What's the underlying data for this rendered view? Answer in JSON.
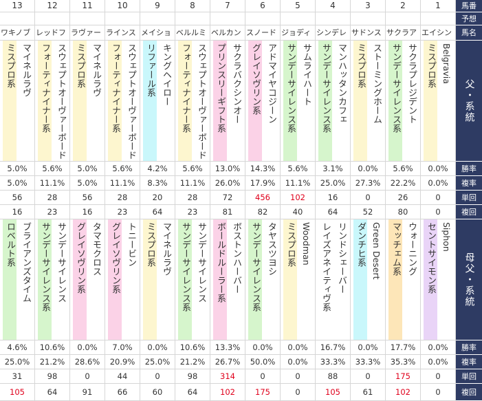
{
  "header_labels": {
    "horse_no": "馬番",
    "prediction": "予想",
    "horse_name": "馬名",
    "sire_line": "父・系統",
    "win_rate": "勝率",
    "place_rate": "複率",
    "win_return": "単回",
    "place_return": "複回",
    "dam_sire_line": "母父・系統"
  },
  "colors": {
    "header_bg": "#2e3b63",
    "highlight_text": "#e0001b",
    "lines": {
      "ミスプロ系": "#fdf6cf",
      "フォーティナイナー系": "#fdf6cf",
      "リファール系": "#c9f7fb",
      "プリンスリーギフト系": "#fbd2e7",
      "グレイソヴリン系": "#fbd2e7",
      "ボールドルーラー系": "#fbd2e7",
      "サンデーサイレンス系": "#d6f5cc",
      "ロベルト系": "#d6f5cc",
      "ダンチヒ系": "#c9f7fb",
      "マッチェム系": "#fde6b8",
      "セントサイモン系": "#e9d4f7"
    }
  },
  "horses": [
    {
      "no": "13",
      "name": "ワキノブ",
      "sire": "マイネルラヴ",
      "sire_line": "ミスプロ系",
      "sire_stats": {
        "win": "5.0%",
        "place": "5.0%",
        "win_ret": "56",
        "place_ret": "16"
      },
      "dam_sire": "ブライアンズタイム",
      "dam_sire_line": "ロベルト系",
      "dam_stats": {
        "win": "4.6%",
        "place": "25.0%",
        "win_ret": "31",
        "place_ret": "105"
      }
    },
    {
      "no": "12",
      "name": "レッドフ",
      "sire": "スウェプトオーヴァーボード",
      "sire_line": "フォーティナイナー系",
      "sire_stats": {
        "win": "5.6%",
        "place": "11.1%",
        "win_ret": "28",
        "place_ret": "23"
      },
      "dam_sire": "サンデーサイレンス",
      "dam_sire_line": "サンデーサイレンス系",
      "dam_stats": {
        "win": "10.6%",
        "place": "21.2%",
        "win_ret": "98",
        "place_ret": "64"
      }
    },
    {
      "no": "11",
      "name": "ラヴァー",
      "sire": "マイネルラヴ",
      "sire_line": "ミスプロ系",
      "sire_stats": {
        "win": "5.0%",
        "place": "5.0%",
        "win_ret": "56",
        "place_ret": "16"
      },
      "dam_sire": "タマモクロス",
      "dam_sire_line": "グレイソヴリン系",
      "dam_stats": {
        "win": "0.0%",
        "place": "28.6%",
        "win_ret": "0",
        "place_ret": "91"
      }
    },
    {
      "no": "10",
      "name": "ラインス",
      "sire": "スウェプトオーヴァーボード",
      "sire_line": "フォーティナイナー系",
      "sire_stats": {
        "win": "5.6%",
        "place": "11.1%",
        "win_ret": "28",
        "place_ret": "23"
      },
      "dam_sire": "トニービン",
      "dam_sire_line": "グレイソヴリン系",
      "dam_stats": {
        "win": "7.0%",
        "place": "20.9%",
        "win_ret": "44",
        "place_ret": "66"
      }
    },
    {
      "no": "9",
      "name": "メイショ",
      "sire": "キングヘイロー",
      "sire_line": "リファール系",
      "sire_stats": {
        "win": "4.2%",
        "place": "8.3%",
        "win_ret": "20",
        "place_ret": "64"
      },
      "dam_sire": "マイネルラヴ",
      "dam_sire_line": "ミスプロ系",
      "dam_stats": {
        "win": "0.0%",
        "place": "25.0%",
        "win_ret": "0",
        "place_ret": "60"
      }
    },
    {
      "no": "8",
      "name": "ベルルミ",
      "sire": "スウェプトオーヴァーボード",
      "sire_line": "フォーティナイナー系",
      "sire_stats": {
        "win": "5.6%",
        "place": "11.1%",
        "win_ret": "28",
        "place_ret": "23"
      },
      "dam_sire": "サンデーサイレンス",
      "dam_sire_line": "サンデーサイレンス系",
      "dam_stats": {
        "win": "10.6%",
        "place": "21.2%",
        "win_ret": "98",
        "place_ret": "64"
      }
    },
    {
      "no": "7",
      "name": "ベルカン",
      "sire": "サクラバクシンオー",
      "sire_line": "プリンスリーギフト系",
      "sire_stats": {
        "win": "13.0%",
        "place": "26.0%",
        "win_ret": "72",
        "place_ret": "81"
      },
      "dam_sire": "ボストンハーバー",
      "dam_sire_line": "ボールドルーラー系",
      "dam_stats": {
        "win": "13.3%",
        "place": "26.7%",
        "win_ret": "314",
        "place_ret": "102"
      }
    },
    {
      "no": "6",
      "name": "スノード",
      "sire": "アドマイヤコジーン",
      "sire_line": "グレイソヴリン系",
      "sire_stats": {
        "win": "14.3%",
        "place": "17.9%",
        "win_ret": "456",
        "place_ret": "82"
      },
      "dam_sire": "タヤスツヨシ",
      "dam_sire_line": "サンデーサイレンス系",
      "dam_stats": {
        "win": "0.0%",
        "place": "50.0%",
        "win_ret": "0",
        "place_ret": "175"
      }
    },
    {
      "no": "5",
      "name": "ジョディ",
      "sire": "サムライハート",
      "sire_line": "サンデーサイレンス系",
      "sire_stats": {
        "win": "5.6%",
        "place": "11.1%",
        "win_ret": "102",
        "place_ret": "40"
      },
      "dam_sire": "Woodman",
      "dam_sire_line": "ミスプロ系",
      "dam_stats": {
        "win": "0.0%",
        "place": "0.0%",
        "win_ret": "0",
        "place_ret": "0"
      }
    },
    {
      "no": "4",
      "name": "シンデレ",
      "sire": "マンハッタンカフェ",
      "sire_line": "サンデーサイレンス系",
      "sire_stats": {
        "win": "3.1%",
        "place": "25.0%",
        "win_ret": "16",
        "place_ret": "64"
      },
      "dam_sire": "リンドシェーバー",
      "dam_sire_line": "レイズアネイティヴ系",
      "dam_stats": {
        "win": "16.7%",
        "place": "33.3%",
        "win_ret": "88",
        "place_ret": "105"
      }
    },
    {
      "no": "3",
      "name": "サドンス",
      "sire": "ストーミングホーム",
      "sire_line": "ミスプロ系",
      "sire_stats": {
        "win": "0.0%",
        "place": "27.3%",
        "win_ret": "0",
        "place_ret": "52"
      },
      "dam_sire": "Green Desert",
      "dam_sire_line": "ダンチヒ系",
      "dam_stats": {
        "win": "0.0%",
        "place": "33.3%",
        "win_ret": "0",
        "place_ret": "61"
      }
    },
    {
      "no": "2",
      "name": "サクラア",
      "sire": "サクラプレジデント",
      "sire_line": "サンデーサイレンス系",
      "sire_stats": {
        "win": "5.6%",
        "place": "22.2%",
        "win_ret": "26",
        "place_ret": "80"
      },
      "dam_sire": "ウォーニング",
      "dam_sire_line": "マッチェム系",
      "dam_stats": {
        "win": "17.7%",
        "place": "35.3%",
        "win_ret": "175",
        "place_ret": "102"
      }
    },
    {
      "no": "1",
      "name": "エイシン",
      "sire": "Belgravia",
      "sire_line": "ミスプロ系",
      "sire_stats": {
        "win": "0.0%",
        "place": "0.0%",
        "win_ret": "0",
        "place_ret": "0"
      },
      "dam_sire": "Siphon",
      "dam_sire_line": "セントサイモン系",
      "dam_stats": {
        "win": "0.0%",
        "place": "0.0%",
        "win_ret": "0",
        "place_ret": "0"
      }
    }
  ],
  "highlights": {
    "sire_win_ret": [
      "456",
      "102"
    ],
    "dam_win_ret": [
      "314",
      "175"
    ],
    "dam_place_ret": [
      "105",
      "102",
      "175"
    ]
  }
}
